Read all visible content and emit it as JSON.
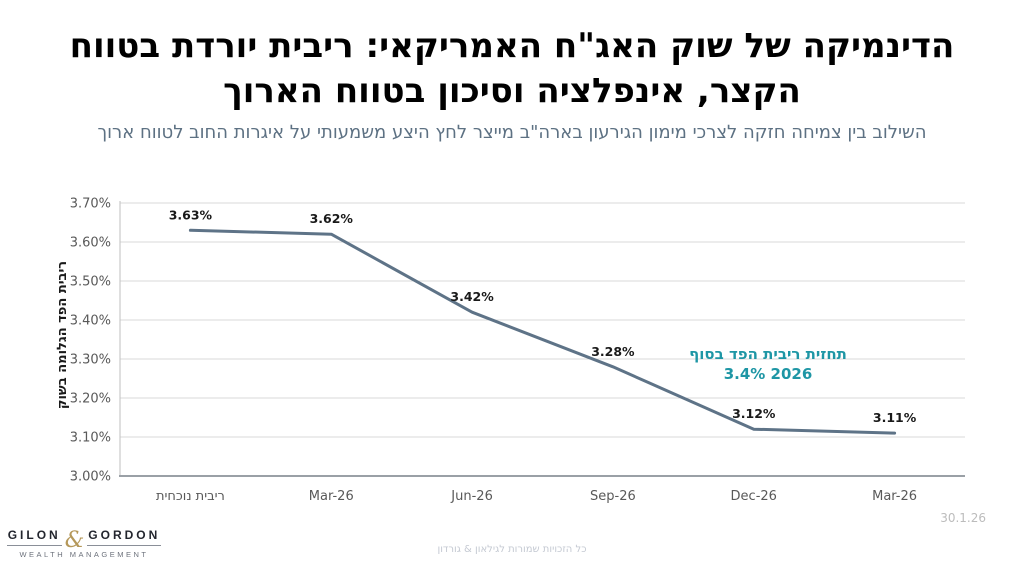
{
  "header": {
    "title_line1": "הדינמיקה של שוק האג\"ח האמריקאי: ריבית יורדת בטווח",
    "title_line2": "הקצר, אינפלציה וסיכון בטווח הארוך",
    "subtitle": "השילוב בין צמיחה חזקה לצרכי מימון הגירעון בארה\"ב מייצר לחץ היצע משמעותי על איגרות החוב לטווח ארוך"
  },
  "chart_data": {
    "type": "line",
    "categories": [
      "ריבית נוכחית",
      "Mar-26",
      "Jun-26",
      "Sep-26",
      "Dec-26",
      "Mar-26"
    ],
    "values": [
      3.63,
      3.62,
      3.42,
      3.28,
      3.12,
      3.11
    ],
    "data_labels": [
      "3.63%",
      "3.62%",
      "3.42%",
      "3.28%",
      "3.12%",
      "3.11%"
    ],
    "title": "",
    "xlabel": "",
    "ylabel": "ריבית הפד הגלומה בשוק",
    "ylim": [
      3.0,
      3.7
    ],
    "ytick_step": 0.1,
    "ytick_labels": [
      "3.00%",
      "3.10%",
      "3.20%",
      "3.30%",
      "3.40%",
      "3.50%",
      "3.60%",
      "3.70%"
    ],
    "grid": true,
    "legend": "none",
    "line_color": "#5e7387",
    "gridline_color": "#d9d9d9",
    "axis_color": "#9aa0a6",
    "tick_label_color": "#595959",
    "data_label_color": "#1a1a1a",
    "annotation": {
      "line1": "תחזית ריבית הפד בסוף",
      "line2": "3.4% 2026",
      "color": "#1e96a5"
    }
  },
  "footer": {
    "logo": {
      "name_left": "GILON",
      "amp": "&",
      "name_right": "GORDON",
      "tagline": "WEALTH MANAGEMENT"
    },
    "rights": "כל הזכויות שמורות לגילאון & גורדון",
    "date": "30.1.26"
  }
}
